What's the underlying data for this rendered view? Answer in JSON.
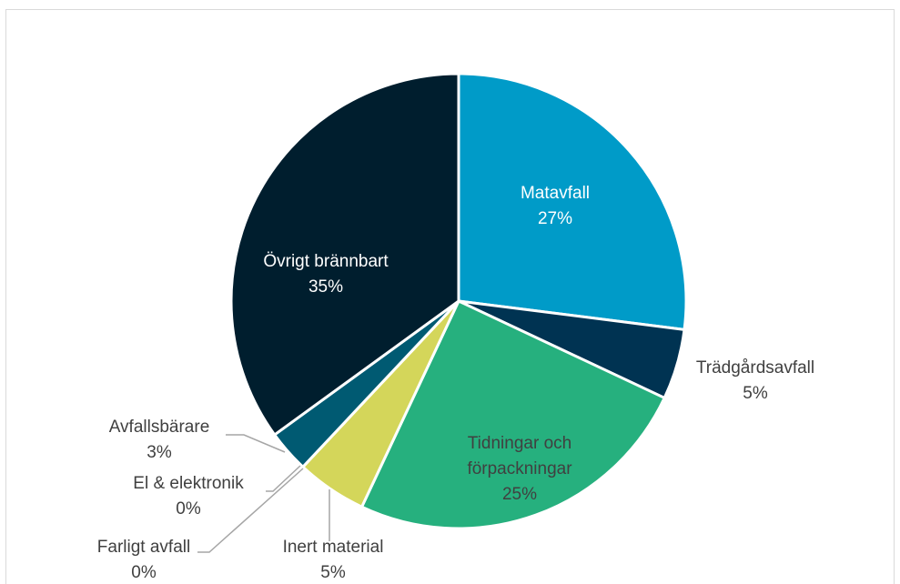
{
  "chart_data": {
    "type": "pie",
    "categories": [
      "Matavfall",
      "Trädgårdsavfall",
      "Tidningar och förpackningar",
      "Inert material",
      "Farligt avfall",
      "El & elektronik",
      "Avfallsbärare",
      "Övrigt brännbart"
    ],
    "values": [
      27,
      5,
      25,
      5,
      0,
      0,
      3,
      35
    ],
    "value_labels": [
      "27%",
      "5%",
      "25%",
      "5%",
      "0%",
      "0%",
      "3%",
      "35%"
    ],
    "colors": [
      "#009bc8",
      "#003352",
      "#26b07e",
      "#d4d65a",
      "#7f7f7f",
      "#a5a5a5",
      "#005a72",
      "#001e2e"
    ]
  }
}
